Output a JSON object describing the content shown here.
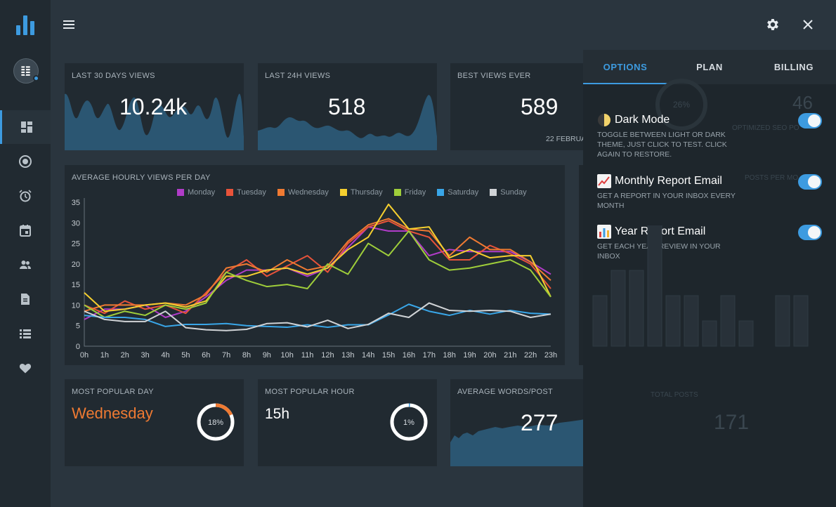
{
  "sidebar": {
    "nav": [
      {
        "icon": "dashboard-icon",
        "active": true
      },
      {
        "icon": "record-icon",
        "active": false
      },
      {
        "icon": "alarm-icon",
        "active": false
      },
      {
        "icon": "calendar-icon",
        "active": false
      },
      {
        "icon": "people-icon",
        "active": false
      },
      {
        "icon": "document-icon",
        "active": false
      },
      {
        "icon": "list-icon",
        "active": false
      },
      {
        "icon": "heart-icon",
        "active": false
      }
    ]
  },
  "cards": {
    "last30": {
      "title": "LAST 30 DAYS VIEWS",
      "value": "10.24k"
    },
    "last24": {
      "title": "LAST 24H VIEWS",
      "value": "518"
    },
    "best": {
      "title": "BEST VIEWS EVER",
      "value": "589",
      "date": "22 FEBRUA"
    },
    "popular_day": {
      "title": "MOST POPULAR DAY",
      "value": "Wednesday",
      "percent": "18%",
      "fraction": 0.18
    },
    "popular_hour": {
      "title": "MOST POPULAR HOUR",
      "value": "15h",
      "percent": "1%",
      "fraction": 0.01
    },
    "avg_words": {
      "title": "AVERAGE WORDS/POST",
      "value": "277"
    }
  },
  "background_ghost": {
    "seo_percent": "26%",
    "seo_value": "46",
    "seo_label": "OPTIMIZED SEO PO",
    "posts_label": "POSTS PER MO",
    "total_label": "TOTAL POSTS",
    "total_value": "171"
  },
  "chart_data": {
    "type": "line",
    "title": "AVERAGE HOURLY VIEWS PER DAY",
    "x": [
      "0h",
      "1h",
      "2h",
      "3h",
      "4h",
      "5h",
      "6h",
      "7h",
      "8h",
      "9h",
      "10h",
      "11h",
      "12h",
      "13h",
      "14h",
      "15h",
      "16h",
      "17h",
      "18h",
      "19h",
      "20h",
      "21h",
      "22h",
      "23h"
    ],
    "ylim": [
      0,
      35
    ],
    "yticks": [
      0,
      5,
      10,
      15,
      20,
      25,
      30,
      35
    ],
    "series": [
      {
        "name": "Monday",
        "color": "#b03cc8",
        "values": [
          6.5,
          9,
          9,
          10,
          7,
          8.5,
          12,
          16,
          18.5,
          18.5,
          19,
          17,
          19,
          24,
          29,
          28,
          28,
          22,
          23.5,
          23,
          23,
          23,
          20.5,
          17.5
        ]
      },
      {
        "name": "Tuesday",
        "color": "#e8533a",
        "values": [
          10,
          8,
          11,
          9,
          10,
          8,
          13,
          18,
          21,
          17,
          19.5,
          22,
          18,
          25,
          29,
          30.5,
          28,
          26.5,
          21,
          21,
          24.5,
          22.5,
          20,
          14
        ]
      },
      {
        "name": "Wednesday",
        "color": "#ef7a32",
        "values": [
          8.5,
          10,
          10,
          10,
          10.5,
          10,
          12.5,
          19,
          20,
          18,
          21,
          18.5,
          19.5,
          25.5,
          29.5,
          31,
          28.5,
          28,
          22,
          26.5,
          23.5,
          23.5,
          20.5,
          16
        ]
      },
      {
        "name": "Thursday",
        "color": "#f5cf2f",
        "values": [
          13,
          8.5,
          9,
          10,
          10.5,
          9.5,
          11,
          17,
          17,
          18.5,
          19,
          17.5,
          19,
          23.5,
          26.5,
          34.5,
          28.5,
          29,
          21.5,
          23.5,
          21.5,
          22,
          22,
          12
        ]
      },
      {
        "name": "Friday",
        "color": "#9fce3a",
        "values": [
          10,
          7,
          8.5,
          7.5,
          10,
          9,
          10.5,
          18,
          16,
          14.5,
          15,
          14,
          20,
          17.5,
          25,
          22,
          28,
          21,
          18.5,
          19,
          20,
          21,
          18.5,
          12
        ]
      },
      {
        "name": "Saturday",
        "color": "#39a6e8",
        "values": [
          7.5,
          7,
          7,
          6.5,
          4.8,
          5.3,
          5.3,
          5.5,
          5,
          4.8,
          4.6,
          5.2,
          4.6,
          5.2,
          5.2,
          7.6,
          10.2,
          8.5,
          7.5,
          8.7,
          7.8,
          8.7,
          8,
          7.8
        ]
      },
      {
        "name": "Sunday",
        "color": "#d0d3d6",
        "values": [
          8.5,
          6.5,
          6,
          6,
          8.5,
          4.5,
          4,
          3.8,
          4.1,
          5.5,
          5.7,
          4.7,
          6.3,
          4.3,
          5.3,
          8,
          7,
          10.5,
          8.7,
          8.5,
          8.7,
          8.5,
          7,
          7.8
        ]
      }
    ]
  },
  "panel": {
    "tabs": [
      "OPTIONS",
      "PLAN",
      "BILLING"
    ],
    "options": [
      {
        "title": "Dark Mode",
        "desc": "TOGGLE BETWEEN LIGHT OR DARK THEME, JUST CLICK TO TEST. CLICK AGAIN TO RESTORE.",
        "icon": "moon-icon",
        "on": true
      },
      {
        "title": "Monthly Report Email",
        "desc": "GET A REPORT IN YOUR INBOX EVERY MONTH",
        "icon": "chart-up-icon",
        "on": true
      },
      {
        "title": "Year Report Email",
        "desc": "GET EACH YEAR REVIEW IN YOUR INBOX",
        "icon": "bar-chart-icon",
        "on": true
      }
    ]
  },
  "colors": {
    "accent": "#3d9be0",
    "highlight": "#ef7a32"
  }
}
